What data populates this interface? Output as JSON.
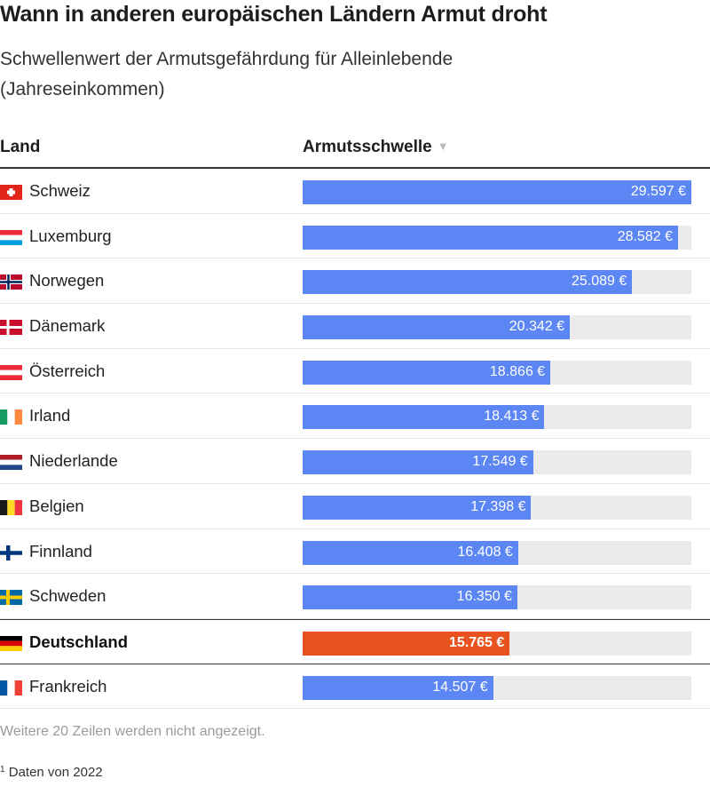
{
  "title": "Wann in anderen europäischen Ländern Armut droht",
  "subtitle": "Schwellenwert der Armutsgefährdung für Alleinlebende (Jahreseinkommen)",
  "columns": {
    "land": "Land",
    "value": "Armutsschwelle",
    "sort_icon": "▼"
  },
  "more_rows_note": "Weitere 20 Zeilen werden nicht angezeigt.",
  "footnote": {
    "marker": "1",
    "text": "Daten von 2022"
  },
  "colors": {
    "bar": "#5b86f4",
    "highlight_bar": "#e8521f",
    "track": "#ebebeb"
  },
  "chart_data": {
    "type": "bar",
    "orientation": "horizontal",
    "xlim": [
      0,
      29597
    ],
    "categories": [
      "Schweiz",
      "Luxemburg",
      "Norwegen",
      "Dänemark",
      "Österreich",
      "Irland",
      "Niederlande",
      "Belgien",
      "Finnland",
      "Schweden",
      "Deutschland",
      "Frankreich"
    ],
    "values": [
      29597,
      28582,
      25089,
      20342,
      18866,
      18413,
      17549,
      17398,
      16408,
      16350,
      15765,
      14507
    ],
    "labels": [
      "29.597 €",
      "28.582 €",
      "25.089 €",
      "20.342 €",
      "18.866 €",
      "18.413 €",
      "17.549 €",
      "17.398 €",
      "16.408 €",
      "16.350 €",
      "15.765 €",
      "14.507 €"
    ],
    "flags": [
      "ch",
      "lu",
      "no",
      "dk",
      "at",
      "ie",
      "nl",
      "be",
      "fi",
      "se",
      "de",
      "fr"
    ],
    "highlight": "Deutschland"
  }
}
